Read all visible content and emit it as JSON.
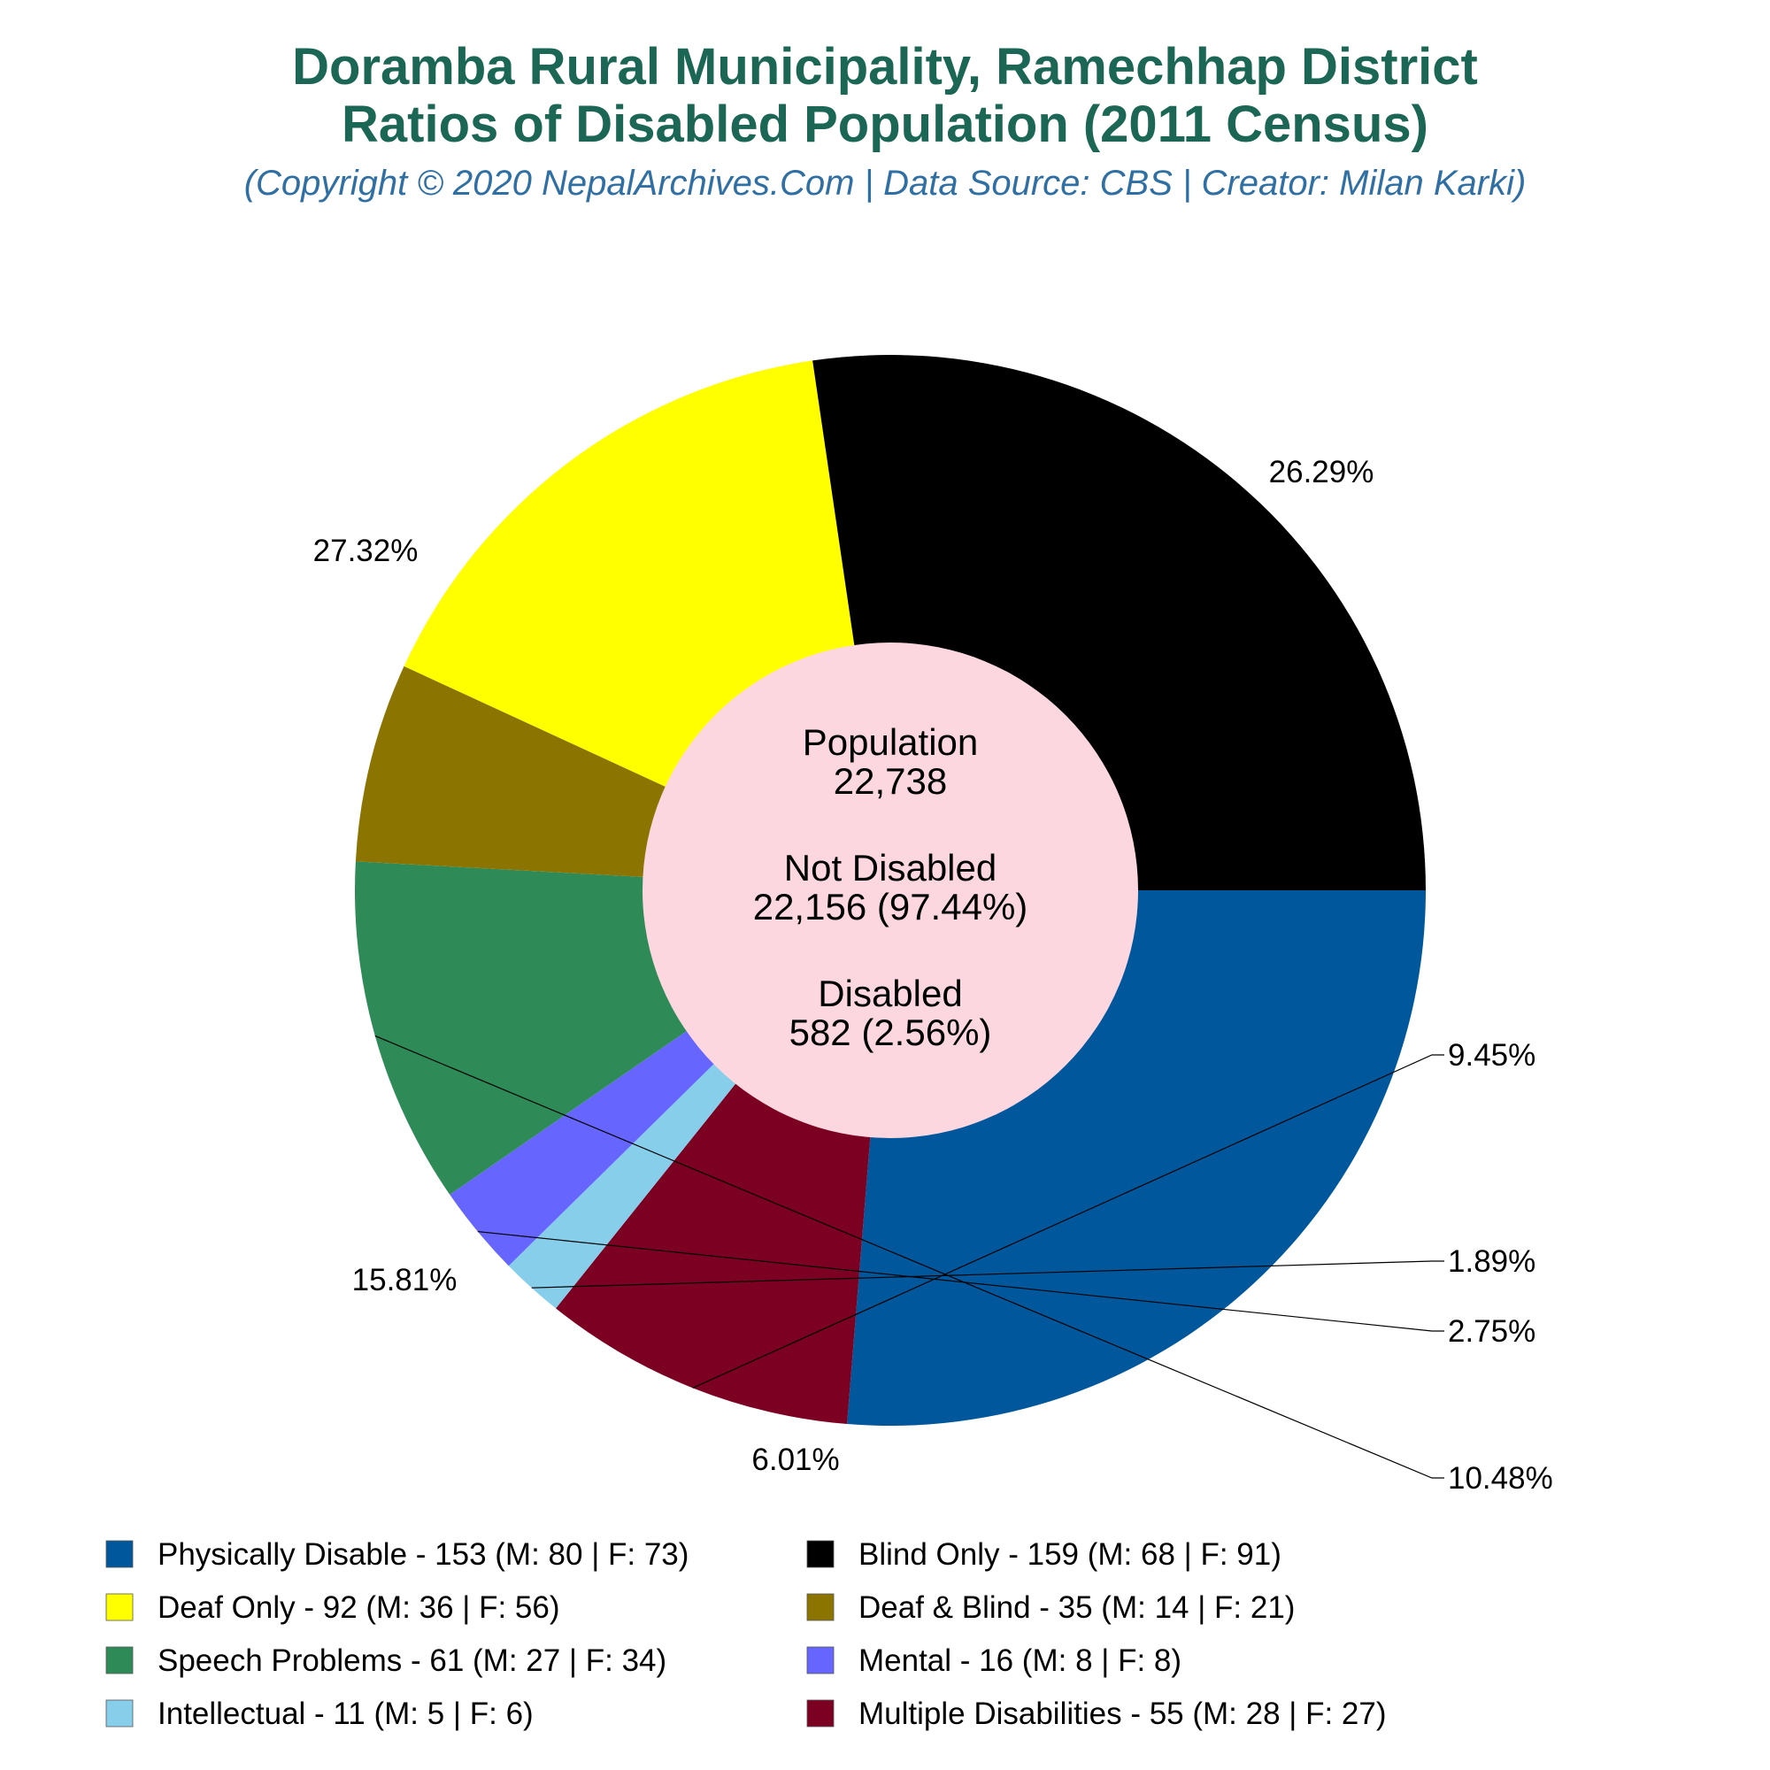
{
  "title_line1": "Doramba Rural Municipality, Ramechhap District",
  "title_line2": "Ratios of Disabled Population (2011 Census)",
  "subtitle": "(Copyright © 2020 NepalArchives.Com | Data Source: CBS | Creator: Milan Karki)",
  "center": {
    "population_label": "Population",
    "population_value": "22,738",
    "not_disabled_label": "Not Disabled",
    "not_disabled_value": "22,156 (97.44%)",
    "disabled_label": "Disabled",
    "disabled_value": "582 (2.56%)",
    "color": "#fdd7df"
  },
  "chart_data": {
    "type": "pie",
    "start_angle_deg": 0,
    "direction": "clockwise",
    "slices": [
      {
        "category": "Physically Disable",
        "value": 153,
        "male": 80,
        "female": 73,
        "percent_label": "26.29%",
        "color": "#01579b",
        "legend_label": "Physically Disable - 153 (M: 80 | F: 73)"
      },
      {
        "category": "Multiple Disabilities",
        "value": 55,
        "male": 28,
        "female": 27,
        "percent_label": "9.45%",
        "color": "#7b0022",
        "legend_label": "Multiple Disabilities - 55 (M: 28 | F: 27)"
      },
      {
        "category": "Intellectual",
        "value": 11,
        "male": 5,
        "female": 6,
        "percent_label": "1.89%",
        "color": "#87ceeb",
        "legend_label": "Intellectual - 11 (M: 5 | F: 6)"
      },
      {
        "category": "Mental",
        "value": 16,
        "male": 8,
        "female": 8,
        "percent_label": "2.75%",
        "color": "#6666ff",
        "legend_label": "Mental - 16 (M: 8 | F: 8)"
      },
      {
        "category": "Speech Problems",
        "value": 61,
        "male": 27,
        "female": 34,
        "percent_label": "10.48%",
        "color": "#2e8b57",
        "legend_label": "Speech Problems - 61 (M: 27 | F: 34)"
      },
      {
        "category": "Deaf & Blind",
        "value": 35,
        "male": 14,
        "female": 21,
        "percent_label": "6.01%",
        "color": "#8b7500",
        "legend_label": "Deaf & Blind - 35 (M: 14 | F: 21)"
      },
      {
        "category": "Deaf Only",
        "value": 92,
        "male": 36,
        "female": 56,
        "percent_label": "15.81%",
        "color": "#ffff00",
        "legend_label": "Deaf Only - 92 (M: 36 | F: 56)"
      },
      {
        "category": "Blind Only",
        "value": 159,
        "male": 68,
        "female": 91,
        "percent_label": "27.32%",
        "color": "#000000",
        "legend_label": "Blind Only - 159 (M: 68 | F: 91)"
      }
    ],
    "legend_order": [
      "Physically Disable",
      "Blind Only",
      "Deaf Only",
      "Deaf & Blind",
      "Speech Problems",
      "Mental",
      "Intellectual",
      "Multiple Disabilities"
    ],
    "legend_position": "bottom"
  }
}
